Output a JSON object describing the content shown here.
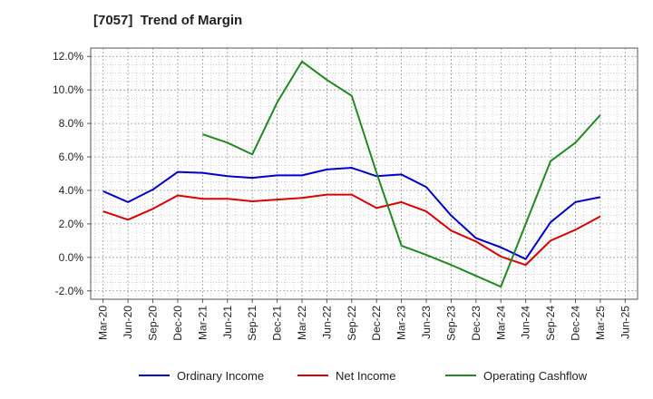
{
  "chart_data": {
    "type": "line",
    "title": "[7057]  Trend of Margin",
    "xlabel": "",
    "ylabel": "",
    "ylim": [
      -2.5,
      12.5
    ],
    "y_ticks": [
      -2.0,
      0.0,
      2.0,
      4.0,
      6.0,
      8.0,
      10.0,
      12.0
    ],
    "y_tick_labels": [
      "-2.0%",
      "0.0%",
      "2.0%",
      "4.0%",
      "6.0%",
      "8.0%",
      "10.0%",
      "12.0%"
    ],
    "categories": [
      "Mar-20",
      "Jun-20",
      "Sep-20",
      "Dec-20",
      "Mar-21",
      "Jun-21",
      "Sep-21",
      "Dec-21",
      "Mar-22",
      "Jun-22",
      "Sep-22",
      "Dec-22",
      "Mar-23",
      "Jun-23",
      "Sep-23",
      "Dec-23",
      "Mar-24",
      "Jun-24",
      "Sep-24",
      "Dec-24",
      "Mar-25",
      "Jun-25"
    ],
    "grid": true,
    "legend_position": "bottom",
    "series": [
      {
        "name": "Ordinary Income",
        "color": "#0000cc",
        "values": [
          3.95,
          3.3,
          4.05,
          5.1,
          5.05,
          4.85,
          4.75,
          4.9,
          4.9,
          5.25,
          5.35,
          4.85,
          4.95,
          4.2,
          2.5,
          1.15,
          0.6,
          -0.1,
          2.1,
          3.3,
          3.6,
          null
        ]
      },
      {
        "name": "Net Income",
        "color": "#dd0000",
        "values": [
          2.75,
          2.25,
          2.9,
          3.7,
          3.5,
          3.5,
          3.35,
          3.45,
          3.55,
          3.75,
          3.75,
          2.95,
          3.3,
          2.75,
          1.6,
          0.95,
          0.05,
          -0.45,
          1.0,
          1.65,
          2.45,
          null
        ]
      },
      {
        "name": "Operating Cashflow",
        "color": "#228822",
        "values": [
          null,
          null,
          null,
          null,
          7.35,
          6.85,
          6.15,
          9.25,
          11.7,
          10.6,
          9.65,
          5.05,
          0.7,
          0.15,
          -0.45,
          -1.1,
          -1.75,
          2.0,
          5.75,
          6.85,
          8.5,
          null
        ]
      }
    ]
  }
}
